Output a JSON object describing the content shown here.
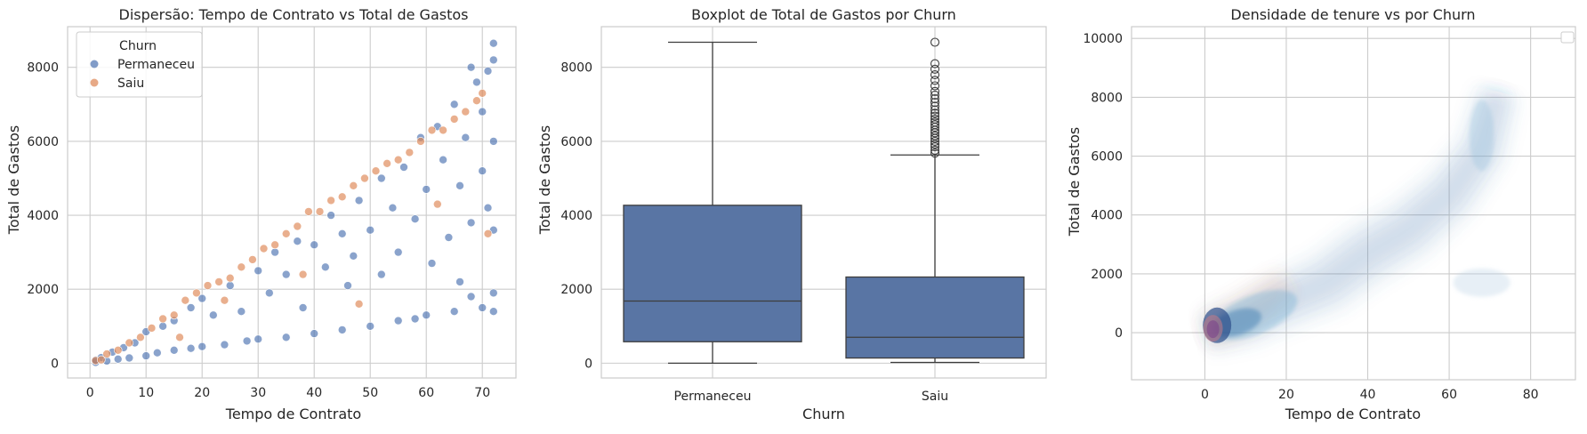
{
  "colors": {
    "background": "#ffffff",
    "grid": "#cccccc",
    "spine": "#cccccc",
    "permaneceu": "#4c72b0",
    "saiu": "#dd8452",
    "box_fill": "#5975a4",
    "box_line": "#3d3d3d"
  },
  "chart_data": [
    {
      "type": "scatter",
      "title": "Dispersão: Tempo de Contrato vs Total de Gastos",
      "xlabel": "Tempo de Contrato",
      "ylabel": "Total de Gastos",
      "xlim": [
        -4,
        76
      ],
      "ylim": [
        -400,
        9100
      ],
      "xticks": [
        "0",
        "10",
        "20",
        "30",
        "40",
        "50",
        "60",
        "70"
      ],
      "yticks": [
        "0",
        "2000",
        "4000",
        "6000",
        "8000"
      ],
      "grid": true,
      "legend": {
        "title": "Churn",
        "placement": "top-left",
        "entries": [
          "Permaneceu",
          "Saiu"
        ]
      },
      "series": [
        {
          "name": "Permaneceu",
          "color": "#4c72b0",
          "points": [
            [
              1,
              20
            ],
            [
              1,
              80
            ],
            [
              2,
              150
            ],
            [
              3,
              60
            ],
            [
              4,
              300
            ],
            [
              5,
              110
            ],
            [
              6,
              420
            ],
            [
              7,
              140
            ],
            [
              8,
              550
            ],
            [
              10,
              200
            ],
            [
              10,
              850
            ],
            [
              12,
              280
            ],
            [
              13,
              1000
            ],
            [
              15,
              350
            ],
            [
              15,
              1150
            ],
            [
              18,
              400
            ],
            [
              18,
              1500
            ],
            [
              20,
              450
            ],
            [
              20,
              1750
            ],
            [
              22,
              1300
            ],
            [
              24,
              500
            ],
            [
              25,
              2100
            ],
            [
              27,
              1400
            ],
            [
              28,
              600
            ],
            [
              30,
              650
            ],
            [
              30,
              2500
            ],
            [
              32,
              1900
            ],
            [
              33,
              3000
            ],
            [
              35,
              700
            ],
            [
              35,
              2400
            ],
            [
              37,
              3300
            ],
            [
              38,
              1500
            ],
            [
              40,
              800
            ],
            [
              40,
              3200
            ],
            [
              42,
              2600
            ],
            [
              43,
              4000
            ],
            [
              45,
              900
            ],
            [
              45,
              3500
            ],
            [
              47,
              2900
            ],
            [
              48,
              4400
            ],
            [
              50,
              1000
            ],
            [
              50,
              3600
            ],
            [
              52,
              2400
            ],
            [
              52,
              5000
            ],
            [
              54,
              4200
            ],
            [
              55,
              1150
            ],
            [
              55,
              3000
            ],
            [
              56,
              5300
            ],
            [
              58,
              3900
            ],
            [
              59,
              6100
            ],
            [
              60,
              1300
            ],
            [
              60,
              4700
            ],
            [
              61,
              2700
            ],
            [
              62,
              6400
            ],
            [
              63,
              5500
            ],
            [
              64,
              3400
            ],
            [
              65,
              1400
            ],
            [
              65,
              7000
            ],
            [
              66,
              4800
            ],
            [
              67,
              6100
            ],
            [
              68,
              1800
            ],
            [
              68,
              3800
            ],
            [
              69,
              7600
            ],
            [
              70,
              1500
            ],
            [
              70,
              5200
            ],
            [
              70,
              6800
            ],
            [
              71,
              4200
            ],
            [
              71,
              7900
            ],
            [
              72,
              1900
            ],
            [
              72,
              3600
            ],
            [
              72,
              6000
            ],
            [
              72,
              8200
            ],
            [
              72,
              8650
            ],
            [
              72,
              1400
            ],
            [
              68,
              8000
            ],
            [
              66,
              2200
            ],
            [
              58,
              1200
            ],
            [
              46,
              2100
            ]
          ]
        },
        {
          "name": "Saiu",
          "color": "#dd8452",
          "points": [
            [
              1,
              70
            ],
            [
              2,
              90
            ],
            [
              3,
              250
            ],
            [
              5,
              350
            ],
            [
              7,
              550
            ],
            [
              9,
              700
            ],
            [
              11,
              950
            ],
            [
              13,
              1200
            ],
            [
              15,
              1300
            ],
            [
              17,
              1700
            ],
            [
              19,
              1900
            ],
            [
              21,
              2100
            ],
            [
              23,
              2200
            ],
            [
              25,
              2300
            ],
            [
              27,
              2600
            ],
            [
              29,
              2800
            ],
            [
              31,
              3100
            ],
            [
              33,
              3200
            ],
            [
              35,
              3500
            ],
            [
              37,
              3700
            ],
            [
              39,
              4100
            ],
            [
              41,
              4100
            ],
            [
              43,
              4400
            ],
            [
              45,
              4500
            ],
            [
              47,
              4800
            ],
            [
              49,
              5000
            ],
            [
              51,
              5200
            ],
            [
              53,
              5400
            ],
            [
              55,
              5500
            ],
            [
              57,
              5700
            ],
            [
              59,
              6000
            ],
            [
              61,
              6300
            ],
            [
              63,
              6300
            ],
            [
              65,
              6600
            ],
            [
              67,
              6800
            ],
            [
              69,
              7100
            ],
            [
              16,
              700
            ],
            [
              24,
              1700
            ],
            [
              38,
              2400
            ],
            [
              48,
              1600
            ],
            [
              62,
              4300
            ],
            [
              71,
              3500
            ],
            [
              70,
              7300
            ]
          ]
        }
      ]
    },
    {
      "type": "box",
      "title": "Boxplot de Total de Gastos por Churn",
      "xlabel": "Churn",
      "ylabel": "Total de Gastos",
      "ylim": [
        -400,
        9100
      ],
      "categories": [
        "Permaneceu",
        "Saiu"
      ],
      "yticks": [
        "0",
        "2000",
        "4000",
        "6000",
        "8000"
      ],
      "grid": true,
      "boxes": [
        {
          "category": "Permaneceu",
          "whisker_low": 0,
          "q1": 580,
          "median": 1680,
          "q3": 4270,
          "whisker_high": 8680,
          "outliers": []
        },
        {
          "category": "Saiu",
          "whisker_low": 20,
          "q1": 140,
          "median": 700,
          "q3": 2330,
          "whisker_high": 5630,
          "outliers": [
            5680,
            5760,
            5850,
            5920,
            6000,
            6080,
            6150,
            6230,
            6300,
            6380,
            6450,
            6520,
            6600,
            6680,
            6760,
            6850,
            6950,
            7050,
            7150,
            7250,
            7350,
            7500,
            7650,
            7800,
            7950,
            8100,
            8680
          ]
        }
      ]
    },
    {
      "type": "density",
      "title": "Densidade de tenure vs  por Churn",
      "xlabel": "Tempo de Contrato",
      "ylabel": "Total de Gastos",
      "xlim": [
        -18,
        91
      ],
      "ylim": [
        -1600,
        10400
      ],
      "xticks": [
        "0",
        "20",
        "40",
        "60",
        "80"
      ],
      "yticks": [
        "0",
        "2000",
        "4000",
        "6000",
        "8000",
        "10000"
      ],
      "grid": true,
      "legend": {
        "placement": "top-right",
        "entries": []
      },
      "series": [
        {
          "color": "#4c72b0",
          "ridge": [
            [
              0,
              0
            ],
            [
              10,
              400
            ],
            [
              20,
              1100
            ],
            [
              30,
              1700
            ],
            [
              40,
              2700
            ],
            [
              50,
              3500
            ],
            [
              60,
              4700
            ],
            [
              68,
              6200
            ],
            [
              72,
              8200
            ]
          ],
          "clusters": [
            [
              2,
              250
            ],
            [
              8,
              700
            ],
            [
              18,
              1400
            ],
            [
              68,
              6600
            ],
            [
              68,
              1700
            ]
          ]
        },
        {
          "color": "#dd8452",
          "ridge": [
            [
              0,
              0
            ],
            [
              5,
              300
            ],
            [
              12,
              900
            ],
            [
              20,
              1700
            ]
          ],
          "clusters": [
            [
              1,
              100
            ],
            [
              3,
              250
            ]
          ]
        }
      ]
    }
  ]
}
